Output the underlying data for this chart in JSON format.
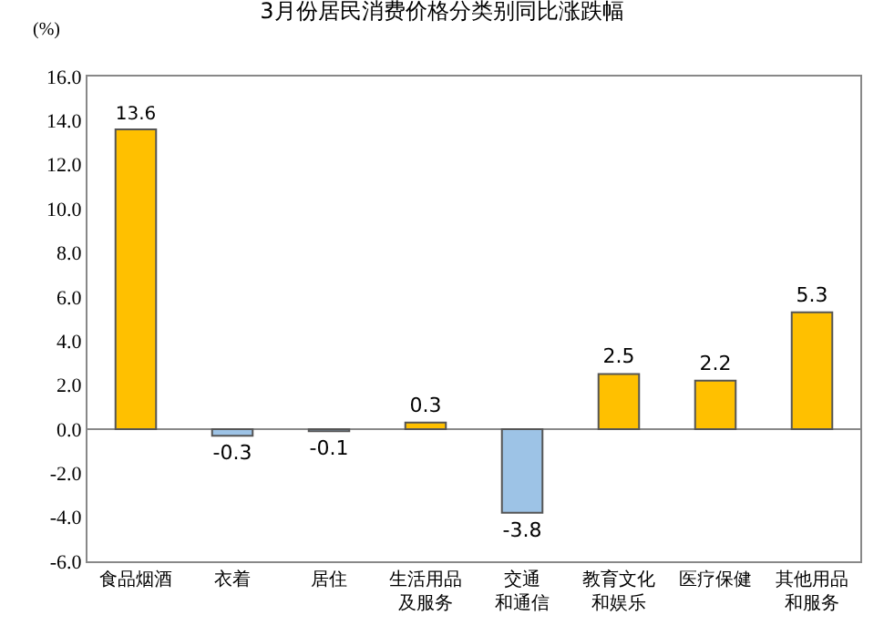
{
  "chart_data": {
    "type": "bar",
    "title": "3月份居民消费价格分类别同比涨跌幅",
    "ylabel": "(%)",
    "categories": [
      "食品烟酒",
      "衣着",
      "居住",
      "生活用品及服务",
      "交通和通信",
      "教育文化和娱乐",
      "医疗保健",
      "其他用品和服务"
    ],
    "values": [
      13.6,
      -0.3,
      -0.1,
      0.3,
      -3.8,
      2.5,
      2.2,
      5.3
    ],
    "colors": [
      "#ffc000",
      "#9dc3e6",
      "#9dc3e6",
      "#ffc000",
      "#9dc3e6",
      "#ffc000",
      "#ffc000",
      "#ffc000"
    ],
    "ylim": [
      -6,
      16
    ],
    "yticks": [
      {
        "value": -6,
        "label": "-6.0"
      },
      {
        "value": -4,
        "label": "-4.0"
      },
      {
        "value": -2,
        "label": "-2.0"
      },
      {
        "value": 0,
        "label": "0.0"
      },
      {
        "value": 2,
        "label": "2.0"
      },
      {
        "value": 4,
        "label": "4.0"
      },
      {
        "value": 6,
        "label": "6.0"
      },
      {
        "value": 8,
        "label": "8.0"
      },
      {
        "value": 10,
        "label": "10.0"
      },
      {
        "value": 12,
        "label": "12.0"
      },
      {
        "value": 14,
        "label": "14.0"
      },
      {
        "value": 16,
        "label": "16.0"
      }
    ],
    "ref_lines": [
      {
        "axis": "y",
        "value": 0,
        "color": "#888888"
      }
    ],
    "data_labels": true,
    "grid": false,
    "legend": false
  }
}
